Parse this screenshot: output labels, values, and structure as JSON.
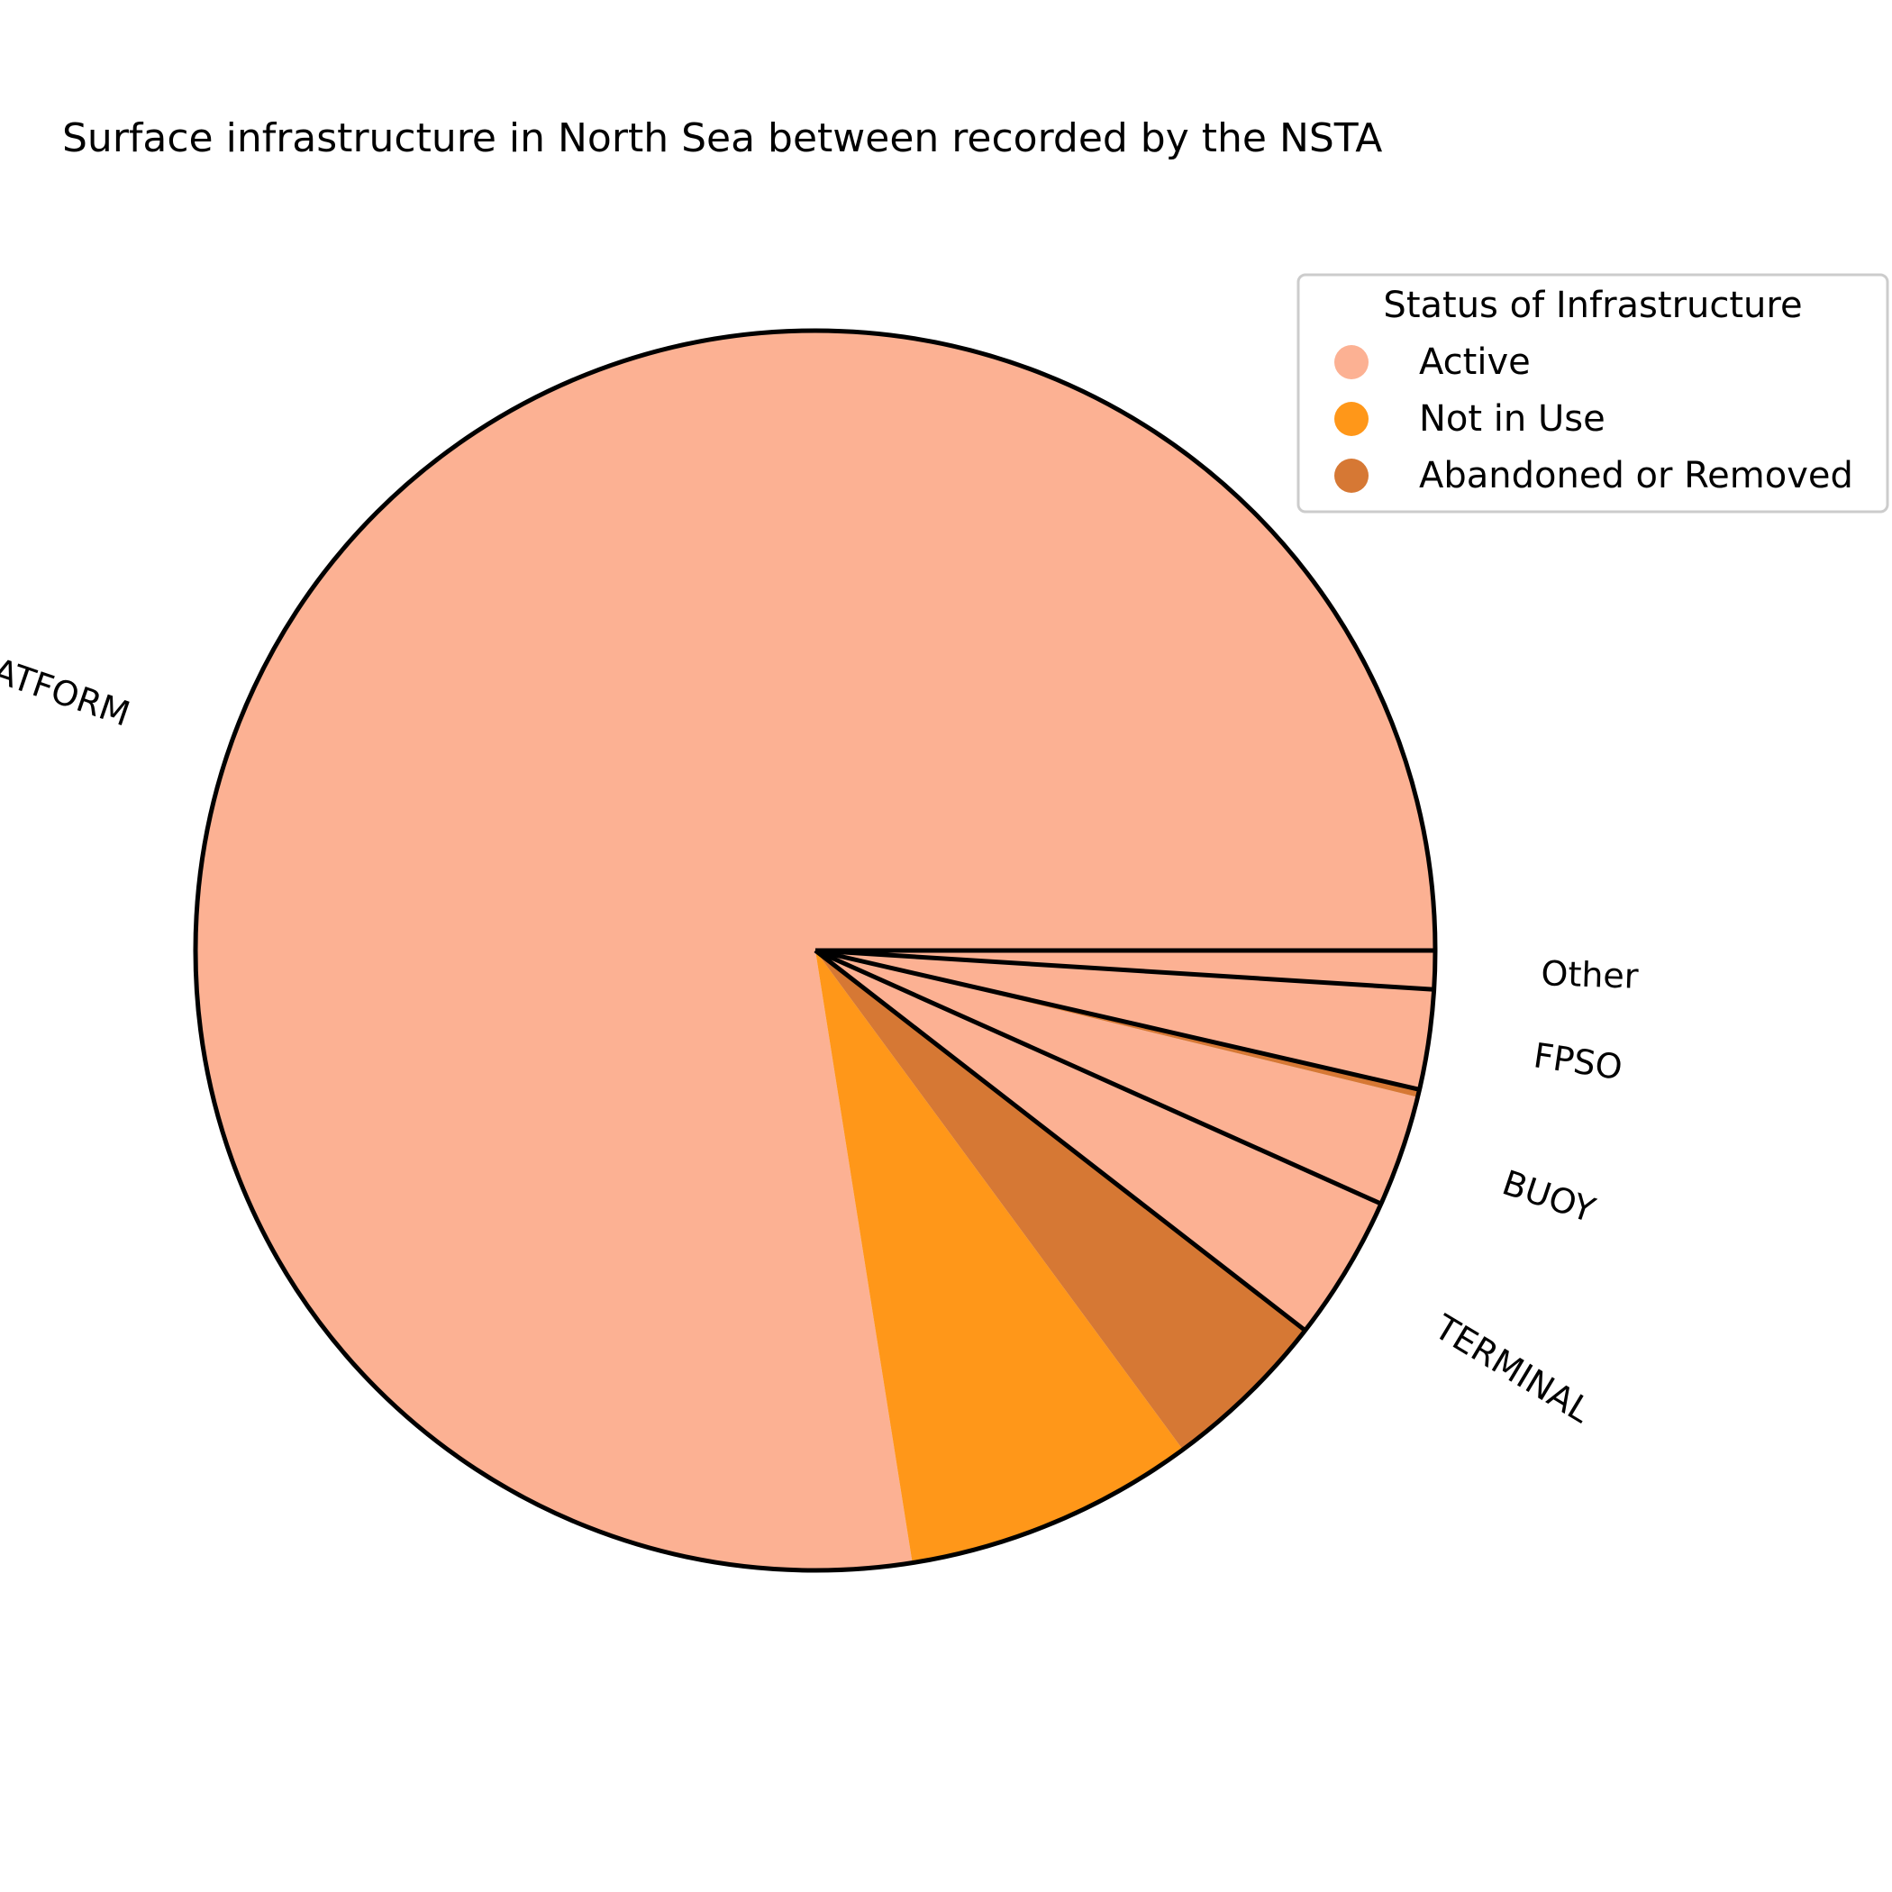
{
  "chart_data": {
    "type": "pie",
    "title": "Surface infrastructure in North Sea between recorded by the NSTA",
    "categories": [
      "PLATFORM",
      "TERMINAL",
      "BUOY",
      "FPSO",
      "Other"
    ],
    "legend": {
      "title": "Status of Infrastructure",
      "placement": "top-right",
      "entries": [
        {
          "label": "Active",
          "color": "#FCA987"
        },
        {
          "label": "Not in Use",
          "color": "#FF8C00"
        },
        {
          "label": "Abandoned or Removed",
          "color": "#D2691E"
        }
      ]
    },
    "start_angle_degrees": 0,
    "direction": "counterclockwise",
    "segments": [
      {
        "category": "PLATFORM",
        "status": "Active",
        "value": 77.5
      },
      {
        "category": "PLATFORM",
        "status": "Not in Use",
        "value": 7.6
      },
      {
        "category": "PLATFORM",
        "status": "Abandoned or Removed",
        "value": 4.4
      },
      {
        "category": "TERMINAL",
        "status": "Active",
        "value": 3.8
      },
      {
        "category": "BUOY",
        "status": "Active",
        "value": 2.9
      },
      {
        "category": "BUOY",
        "status": "Abandoned or Removed",
        "value": 0.2
      },
      {
        "category": "FPSO",
        "status": "Active",
        "value": 2.6
      },
      {
        "category": "Other",
        "status": "Active",
        "value": 1.0
      }
    ]
  }
}
